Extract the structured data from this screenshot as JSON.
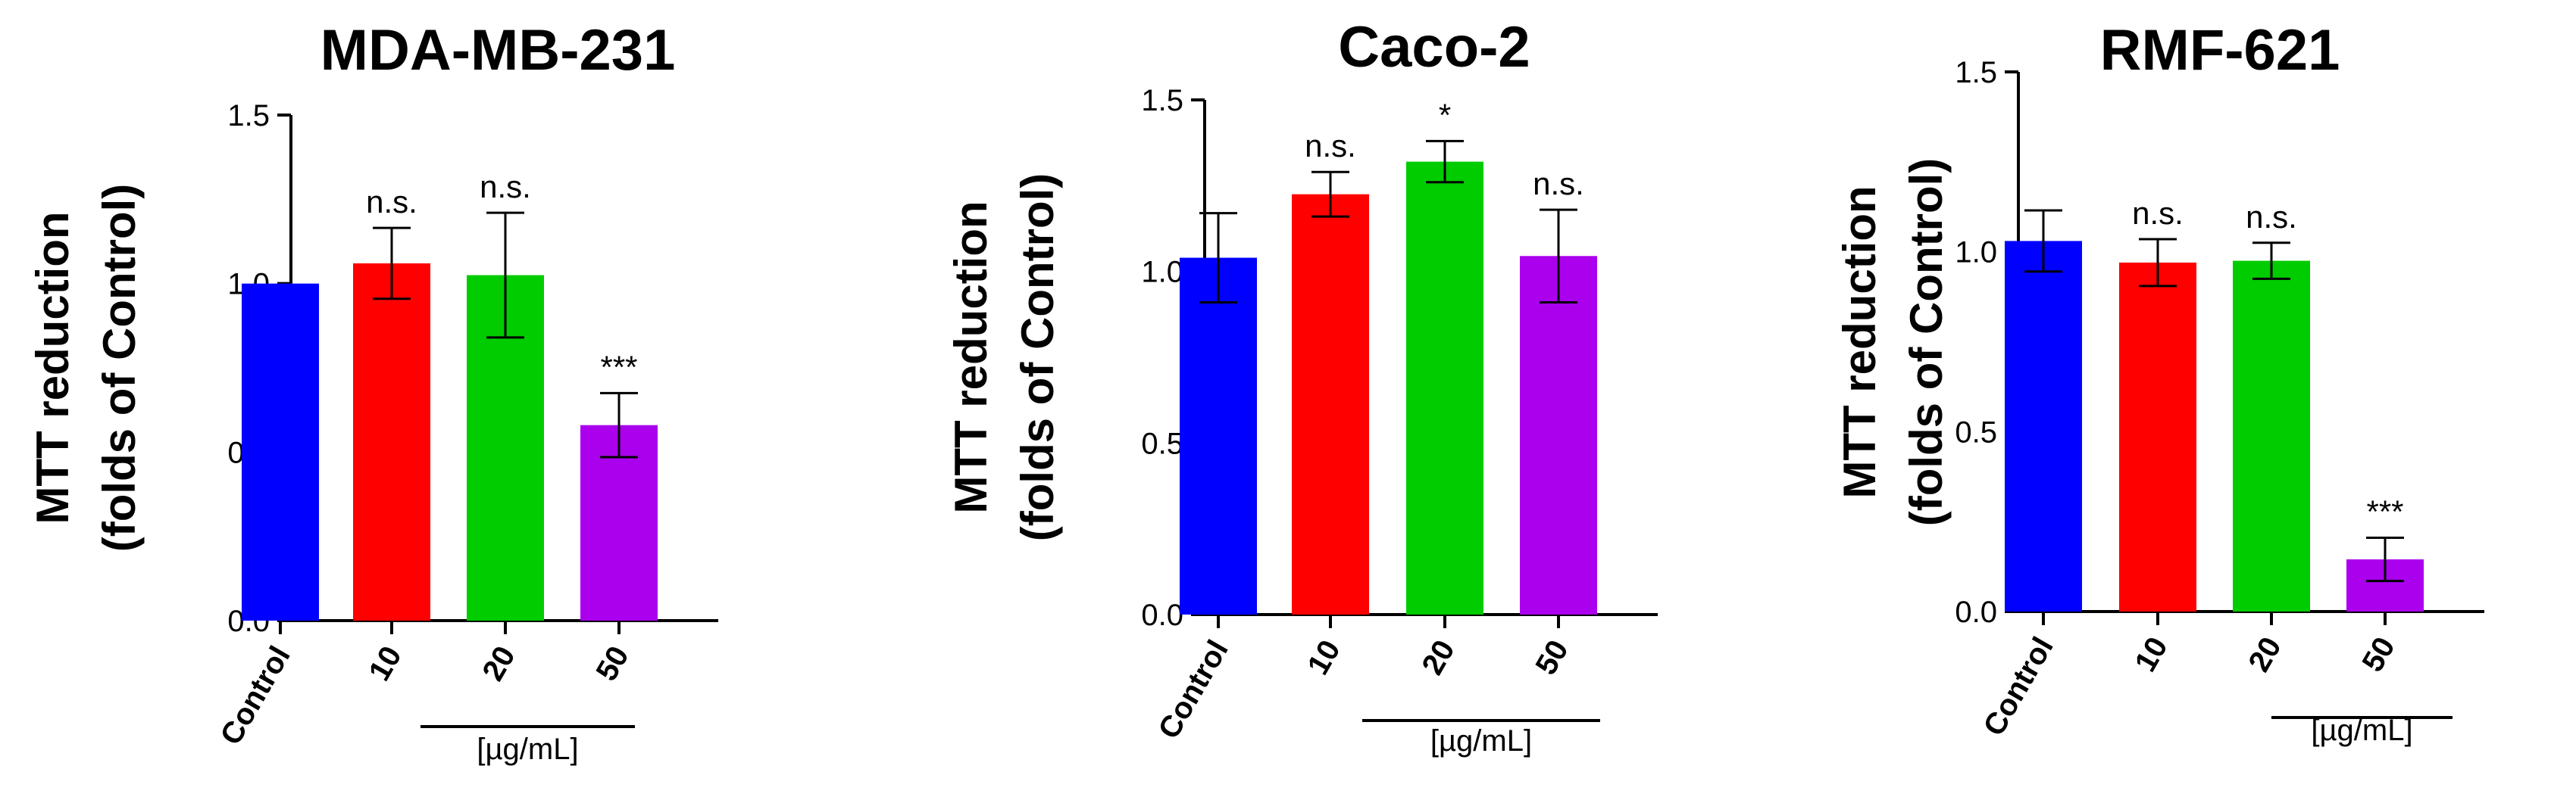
{
  "chart_data": [
    {
      "type": "bar",
      "title": "MDA-MB-231",
      "ylabel": "MTT reduction\n(folds of Control)",
      "categories": [
        "Control",
        "10",
        "20",
        "50"
      ],
      "group_label": "[µg/mL]",
      "values": [
        1.0,
        1.06,
        1.025,
        0.58
      ],
      "errors": [
        0.0,
        0.105,
        0.185,
        0.095
      ],
      "significance": [
        "",
        "n.s.",
        "n.s.",
        "***"
      ],
      "colors": [
        "#0000FF",
        "#FF0000",
        "#00CC00",
        "#AA00EE"
      ],
      "ylim": [
        0,
        1.5
      ],
      "yticks": [
        "0.0",
        "0.5",
        "1.0",
        "1.5"
      ]
    },
    {
      "type": "bar",
      "title": "Caco-2",
      "ylabel": "MTT reduction\n(folds of Control)",
      "categories": [
        "Control",
        "10",
        "20",
        "50"
      ],
      "group_label": "[µg/mL]",
      "values": [
        1.04,
        1.225,
        1.32,
        1.045
      ],
      "errors": [
        0.13,
        0.065,
        0.06,
        0.135
      ],
      "significance": [
        "",
        "n.s.",
        "*",
        "n.s."
      ],
      "colors": [
        "#0000FF",
        "#FF0000",
        "#00CC00",
        "#AA00EE"
      ],
      "ylim": [
        0,
        1.5
      ],
      "yticks": [
        "0.0",
        "0.5",
        "1.0",
        "1.5"
      ]
    },
    {
      "type": "bar",
      "title": "RMF-621",
      "ylabel": "MTT reduction\n(folds of Control)",
      "categories": [
        "Control",
        "10",
        "20",
        "50"
      ],
      "group_label": "[µg/mL]",
      "values": [
        1.03,
        0.97,
        0.975,
        0.145
      ],
      "errors": [
        0.085,
        0.065,
        0.05,
        0.06
      ],
      "significance": [
        "",
        "n.s.",
        "n.s.",
        "***"
      ],
      "colors": [
        "#0000FF",
        "#FF0000",
        "#00CC00",
        "#AA00EE"
      ],
      "ylim": [
        0,
        1.5
      ],
      "yticks": [
        "0.0",
        "0.5",
        "1.0",
        "1.5"
      ]
    }
  ]
}
